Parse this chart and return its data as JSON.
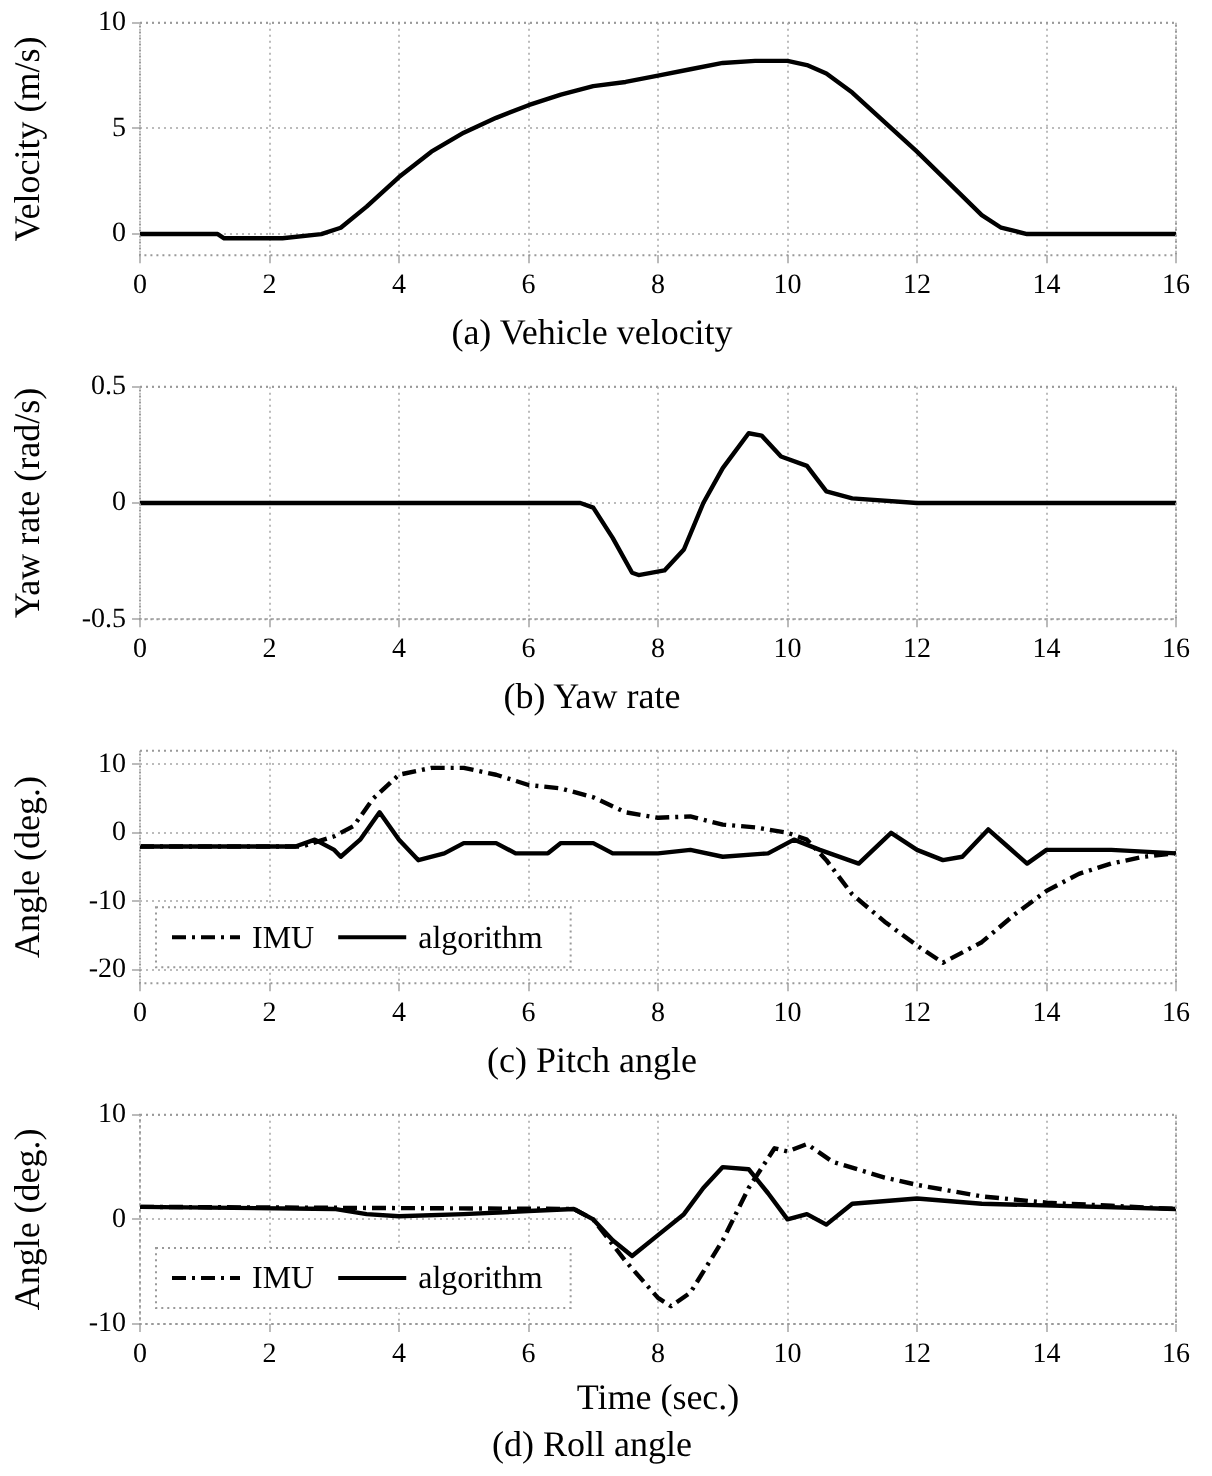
{
  "chart_data": [
    {
      "type": "line",
      "title": "(a) Vehicle velocity",
      "ylabel": "Velocity (m/s)",
      "xlim": [
        0,
        16
      ],
      "xticks": [
        0,
        2,
        4,
        6,
        8,
        10,
        12,
        14,
        16
      ],
      "ylim": [
        -1,
        10
      ],
      "yticks": [
        0,
        5,
        10
      ],
      "grid": true,
      "legend": false,
      "series": [
        {
          "color": "#000000",
          "x": [
            0,
            1.2,
            1.3,
            2.2,
            2.8,
            3.1,
            3.5,
            4,
            4.5,
            5,
            5.5,
            6,
            6.5,
            7,
            7.5,
            8,
            8.5,
            9,
            9.5,
            10,
            10.3,
            10.6,
            11,
            11.5,
            12,
            12.5,
            13,
            13.3,
            13.7,
            14,
            16
          ],
          "values": [
            0,
            0,
            -0.2,
            -0.2,
            0,
            0.3,
            1.3,
            2.7,
            3.9,
            4.8,
            5.5,
            6.1,
            6.6,
            7.0,
            7.2,
            7.5,
            7.8,
            8.1,
            8.2,
            8.2,
            8.0,
            7.6,
            6.7,
            5.3,
            3.9,
            2.4,
            0.9,
            0.3,
            0,
            0,
            0
          ]
        }
      ]
    },
    {
      "type": "line",
      "title": "(b) Yaw rate",
      "ylabel": "Yaw rate (rad/s)",
      "xlim": [
        0,
        16
      ],
      "xticks": [
        0,
        2,
        4,
        6,
        8,
        10,
        12,
        14,
        16
      ],
      "ylim": [
        -0.5,
        0.5
      ],
      "yticks": [
        -0.5,
        0,
        0.5
      ],
      "grid": true,
      "legend": false,
      "series": [
        {
          "color": "#000000",
          "x": [
            0,
            6.8,
            7,
            7.3,
            7.6,
            7.7,
            8.1,
            8.4,
            8.7,
            9,
            9.4,
            9.6,
            9.9,
            10.3,
            10.6,
            11,
            12,
            16
          ],
          "values": [
            0,
            0,
            -0.02,
            -0.15,
            -0.3,
            -0.31,
            -0.29,
            -0.2,
            0,
            0.15,
            0.3,
            0.29,
            0.2,
            0.16,
            0.05,
            0.02,
            0,
            0
          ]
        }
      ]
    },
    {
      "type": "line",
      "title": "(c) Pitch angle",
      "ylabel": "Angle (deg.)",
      "xlim": [
        0,
        16
      ],
      "xticks": [
        0,
        2,
        4,
        6,
        8,
        10,
        12,
        14,
        16
      ],
      "ylim": [
        -22,
        12
      ],
      "yticks": [
        -20,
        -10,
        0,
        10
      ],
      "grid": true,
      "legend": "bottom left",
      "series": [
        {
          "name": "IMU",
          "color": "#000000",
          "line_style": "dashed",
          "x": [
            0,
            2.5,
            3,
            3.3,
            3.6,
            4,
            4.5,
            5,
            5.5,
            6,
            6.5,
            7,
            7.5,
            8,
            8.5,
            9,
            9.5,
            10,
            10.3,
            10.6,
            11,
            11.5,
            12,
            12.4,
            13,
            13.5,
            14,
            14.5,
            15,
            15.5,
            16
          ],
          "values": [
            -2,
            -2,
            -0.5,
            1,
            5,
            8.5,
            9.5,
            9.5,
            8.5,
            7,
            6.5,
            5.2,
            3,
            2.2,
            2.4,
            1.2,
            0.8,
            0,
            -1,
            -4,
            -9,
            -13,
            -16.5,
            -19,
            -16,
            -12,
            -8.5,
            -6,
            -4.5,
            -3.5,
            -3
          ]
        },
        {
          "name": "algorithm",
          "color": "#000000",
          "line_style": "solid",
          "x": [
            0,
            2.4,
            2.7,
            3,
            3.1,
            3.4,
            3.7,
            4,
            4.3,
            4.7,
            5,
            5.5,
            5.8,
            6.3,
            6.5,
            7,
            7.3,
            8,
            8.5,
            9,
            9.7,
            10.1,
            10.5,
            11.1,
            11.6,
            12,
            12.4,
            12.7,
            13.1,
            13.4,
            13.7,
            14,
            15,
            16
          ],
          "values": [
            -2,
            -2,
            -1,
            -2.5,
            -3.5,
            -1,
            3,
            -1,
            -4,
            -3,
            -1.5,
            -1.5,
            -3,
            -3,
            -1.5,
            -1.5,
            -3,
            -3,
            -2.5,
            -3.5,
            -3,
            -1,
            -2.5,
            -4.5,
            0,
            -2.5,
            -4,
            -3.5,
            0.5,
            -2,
            -4.5,
            -2.5,
            -2.5,
            -3
          ]
        }
      ]
    },
    {
      "type": "line",
      "title": "(d) Roll angle",
      "xlabel": "Time (sec.)",
      "ylabel": "Angle (deg.)",
      "xlim": [
        0,
        16
      ],
      "xticks": [
        0,
        2,
        4,
        6,
        8,
        10,
        12,
        14,
        16
      ],
      "ylim": [
        -10,
        10
      ],
      "yticks": [
        -10,
        0,
        10
      ],
      "grid": true,
      "legend": "bottom left",
      "series": [
        {
          "name": "IMU",
          "color": "#000000",
          "line_style": "dashed",
          "x": [
            0,
            6.7,
            7,
            7.5,
            8,
            8.2,
            8.5,
            9,
            9.4,
            9.8,
            10,
            10.3,
            10.7,
            11.5,
            12,
            13,
            14,
            15,
            16
          ],
          "values": [
            1.2,
            1,
            0,
            -4,
            -7.5,
            -8.3,
            -7,
            -2,
            3,
            6.8,
            6.5,
            7.2,
            5.5,
            4,
            3.3,
            2.2,
            1.6,
            1.3,
            1
          ]
        },
        {
          "name": "algorithm",
          "color": "#000000",
          "line_style": "solid",
          "x": [
            0,
            3,
            3.5,
            4,
            5,
            6,
            6.7,
            7,
            7.3,
            7.6,
            8,
            8.4,
            8.7,
            9,
            9.4,
            9.7,
            10,
            10.3,
            10.6,
            11,
            12,
            13,
            16
          ],
          "values": [
            1.2,
            1,
            0.5,
            0.3,
            0.5,
            0.8,
            1,
            0,
            -2,
            -3.5,
            -1.5,
            0.5,
            3,
            5,
            4.8,
            2.5,
            0,
            0.5,
            -0.5,
            1.5,
            2,
            1.5,
            1
          ]
        }
      ]
    }
  ]
}
